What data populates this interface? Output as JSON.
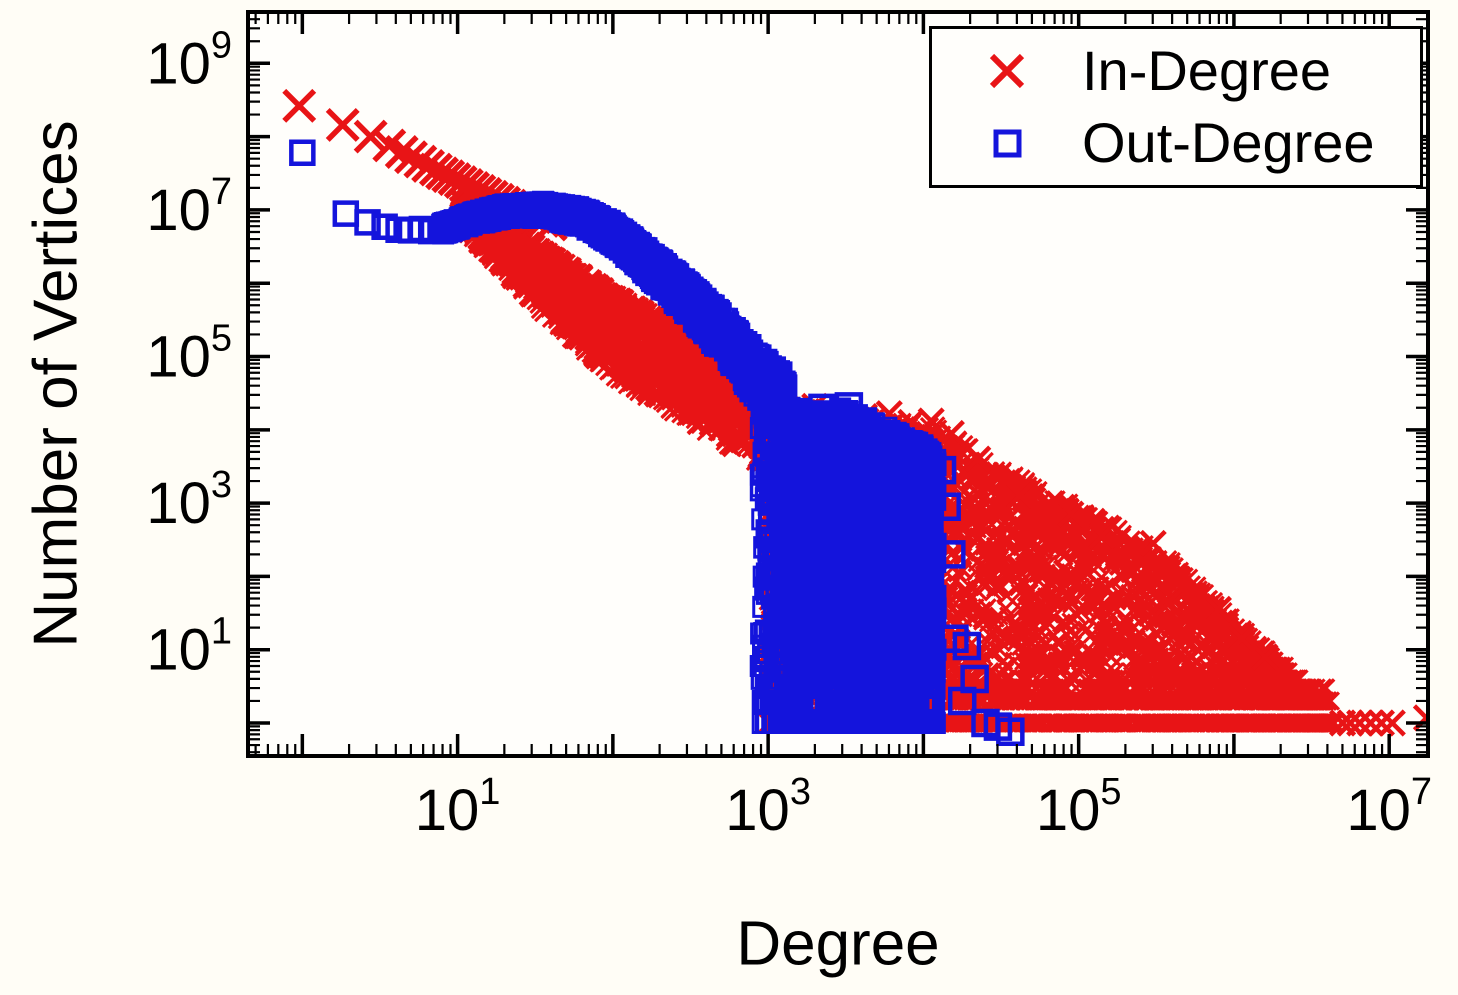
{
  "chart_data": {
    "type": "scatter",
    "title": "",
    "xlabel": "Degree",
    "ylabel": "Number of Vertices",
    "xscale": "log",
    "yscale": "log",
    "xlim_log10": [
      -0.35,
      7.25
    ],
    "ylim_log10": [
      -0.45,
      9.7
    ],
    "x_labeled_decades": [
      1,
      3,
      5,
      7
    ],
    "y_labeled_decades": [
      1,
      3,
      5,
      7,
      9
    ],
    "grid": "off",
    "plot_background": "#fffefb",
    "frame_color": "#000000",
    "legend": {
      "position": "top-right",
      "entries": [
        {
          "label": "In-Degree",
          "marker": "x",
          "color": "#e81416"
        },
        {
          "label": "Out-Degree",
          "marker": "open-square",
          "color": "#1414dc"
        }
      ]
    },
    "series": [
      {
        "name": "In-Degree",
        "marker": "x",
        "color": "#e81416",
        "seed": 101,
        "head_points_log10": [
          [
            -0.02,
            8.42
          ],
          [
            0.26,
            8.16
          ],
          [
            0.44,
            8.0
          ],
          [
            0.56,
            7.88
          ],
          [
            0.64,
            7.79
          ],
          [
            0.7,
            7.72
          ],
          [
            0.76,
            7.66
          ],
          [
            0.81,
            7.6
          ],
          [
            0.86,
            7.55
          ],
          [
            0.9,
            7.5
          ],
          [
            0.94,
            7.46
          ],
          [
            0.98,
            7.42
          ],
          [
            1.02,
            7.38
          ],
          [
            1.06,
            7.34
          ],
          [
            1.1,
            7.3
          ],
          [
            1.14,
            7.26
          ],
          [
            1.18,
            7.22
          ],
          [
            1.22,
            7.18
          ],
          [
            1.26,
            7.14
          ],
          [
            1.3,
            7.1
          ],
          [
            1.34,
            7.06
          ],
          [
            1.38,
            7.02
          ],
          [
            1.42,
            6.98
          ],
          [
            1.46,
            6.94
          ],
          [
            1.5,
            6.9
          ],
          [
            1.55,
            6.85
          ],
          [
            1.6,
            6.8
          ]
        ],
        "band": {
          "x0": 1.0,
          "x1": 3.05,
          "n": 1900,
          "topbias": 1.5,
          "center": [
            [
              1.0,
              7.0
            ],
            [
              1.5,
              6.12
            ],
            [
              2.0,
              5.3
            ],
            [
              2.5,
              4.7
            ],
            [
              3.05,
              3.9
            ]
          ],
          "halfwidth": [
            [
              1.0,
              0.18
            ],
            [
              1.5,
              0.42
            ],
            [
              2.0,
              0.58
            ],
            [
              2.5,
              0.6
            ],
            [
              3.05,
              0.52
            ]
          ]
        },
        "curtain": {
          "x0": 3.0,
          "x1": 6.65,
          "n": 3200,
          "xpow": 1.35,
          "ypow": 1.25,
          "bottom": -0.12,
          "top": [
            [
              3.05,
              4.35
            ],
            [
              3.3,
              4.3
            ],
            [
              3.6,
              4.2
            ],
            [
              3.9,
              4.1
            ],
            [
              4.1,
              4.05
            ],
            [
              4.4,
              3.6
            ],
            [
              4.7,
              3.25
            ],
            [
              5.0,
              2.95
            ],
            [
              5.3,
              2.6
            ],
            [
              5.6,
              2.2
            ],
            [
              5.9,
              1.6
            ],
            [
              6.2,
              1.0
            ],
            [
              6.45,
              0.5
            ],
            [
              6.65,
              0.15
            ]
          ]
        },
        "strip": {
          "x0": 3.5,
          "x1": 6.6,
          "ytop": 0.55,
          "ybot": -0.1,
          "n": 700
        },
        "outliers_log10": [
          [
            5.48,
            2.45
          ],
          [
            5.58,
            1.65
          ],
          [
            4.62,
            3.1
          ],
          [
            4.95,
            2.85
          ],
          [
            5.15,
            2.55
          ],
          [
            3.3,
            4.32
          ],
          [
            3.48,
            4.22
          ],
          [
            3.62,
            4.18
          ],
          [
            3.78,
            4.22
          ],
          [
            3.92,
            4.1
          ],
          [
            4.05,
            4.12
          ],
          [
            4.18,
            3.95
          ],
          [
            4.35,
            3.6
          ],
          [
            5.9,
            1.55
          ],
          [
            6.05,
            1.15
          ],
          [
            6.2,
            0.9
          ]
        ],
        "tail_points_log10": [
          [
            6.7,
            0.0
          ],
          [
            6.75,
            0.0
          ],
          [
            6.81,
            0.0
          ],
          [
            6.88,
            0.0
          ],
          [
            6.95,
            0.0
          ],
          [
            7.02,
            0.0
          ],
          [
            7.24,
            0.07
          ]
        ]
      },
      {
        "name": "Out-Degree",
        "marker": "open-square",
        "color": "#1414dc",
        "seed": 202,
        "head_points_log10": [
          [
            0.0,
            7.78
          ],
          [
            0.28,
            6.95
          ],
          [
            0.42,
            6.83
          ],
          [
            0.53,
            6.77
          ],
          [
            0.62,
            6.73
          ],
          [
            0.7,
            6.72
          ],
          [
            0.77,
            6.74
          ],
          [
            0.83,
            6.71
          ],
          [
            0.89,
            6.74
          ],
          [
            0.95,
            6.78
          ],
          [
            1.02,
            6.83
          ],
          [
            1.09,
            6.88
          ],
          [
            1.16,
            6.93
          ],
          [
            1.23,
            6.97
          ],
          [
            1.31,
            7.0
          ],
          [
            1.4,
            7.02
          ],
          [
            1.5,
            7.02
          ],
          [
            1.6,
            7.0
          ],
          [
            1.7,
            6.97
          ],
          [
            1.8,
            6.92
          ]
        ],
        "band": {
          "x0": 0.9,
          "x1": 3.12,
          "n": 1800,
          "topbias": 1.2,
          "center": [
            [
              0.9,
              6.74
            ],
            [
              1.1,
              6.88
            ],
            [
              1.3,
              6.98
            ],
            [
              1.55,
              7.0
            ],
            [
              1.8,
              6.9
            ],
            [
              2.0,
              6.68
            ],
            [
              2.2,
              6.32
            ],
            [
              2.45,
              5.85
            ],
            [
              2.7,
              5.32
            ],
            [
              2.9,
              4.8
            ],
            [
              3.12,
              4.35
            ]
          ],
          "halfwidth": [
            [
              0.9,
              0.07
            ],
            [
              1.4,
              0.1
            ],
            [
              1.9,
              0.14
            ],
            [
              2.4,
              0.22
            ],
            [
              2.8,
              0.3
            ],
            [
              3.12,
              0.38
            ]
          ]
        },
        "curtain": {
          "x0": 2.95,
          "x1": 4.08,
          "n": 3200,
          "xpow": 0.8,
          "ypow": 1.1,
          "bottom": -0.15,
          "top": [
            [
              2.95,
              4.55
            ],
            [
              3.1,
              4.35
            ],
            [
              3.3,
              4.25
            ],
            [
              3.5,
              4.3
            ],
            [
              3.7,
              4.1
            ],
            [
              3.85,
              3.95
            ],
            [
              4.0,
              3.78
            ],
            [
              4.08,
              3.62
            ]
          ]
        },
        "outliers_log10": [
          [
            4.12,
            3.45
          ],
          [
            4.15,
            2.95
          ],
          [
            4.18,
            2.3
          ],
          [
            4.2,
            1.15
          ],
          [
            4.28,
            1.05
          ],
          [
            4.33,
            0.6
          ],
          [
            4.25,
            0.3
          ],
          [
            4.4,
            0.0
          ],
          [
            4.48,
            -0.05
          ],
          [
            4.56,
            -0.12
          ],
          [
            3.35,
            4.3
          ],
          [
            3.52,
            4.32
          ],
          [
            3.2,
            4.2
          ]
        ],
        "tail_points_log10": []
      }
    ]
  }
}
